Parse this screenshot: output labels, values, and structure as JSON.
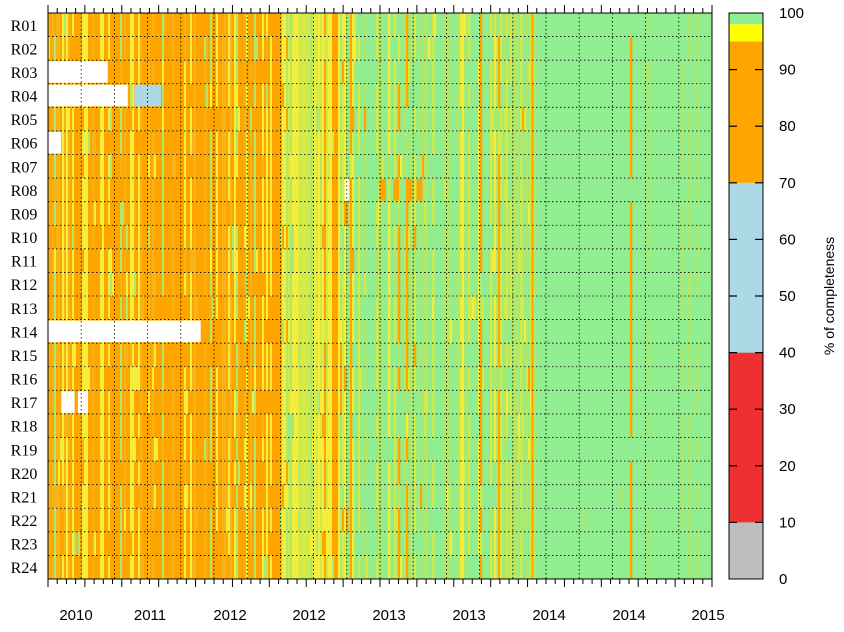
{
  "chart_data": {
    "type": "heatmap",
    "title": "",
    "xlabel": "",
    "ylabel": "",
    "colorbar_label": "% of completeness",
    "rows": [
      "R01",
      "R02",
      "R03",
      "R04",
      "R05",
      "R06",
      "R07",
      "R08",
      "R09",
      "R10",
      "R11",
      "R12",
      "R13",
      "R14",
      "R15",
      "R16",
      "R17",
      "R18",
      "R19",
      "R20",
      "R21",
      "R22",
      "R23",
      "R24"
    ],
    "x_tick_labels": [
      "2010",
      "2011",
      "2012",
      "2012",
      "2013",
      "2013",
      "2014",
      "2014",
      "2015"
    ],
    "colorbar": {
      "range": [
        0,
        100
      ],
      "ticks": [
        "0",
        "10",
        "20",
        "30",
        "40",
        "50",
        "60",
        "70",
        "80",
        "90",
        "100"
      ],
      "bins": [
        {
          "from": 0,
          "to": 10,
          "color": "#bebebe"
        },
        {
          "from": 10,
          "to": 40,
          "color": "#ee3030"
        },
        {
          "from": 40,
          "to": 70,
          "color": "#add8e6"
        },
        {
          "from": 70,
          "to": 95,
          "color": "#ffa500"
        },
        {
          "from": 95,
          "to": 98,
          "color": "#ffff00"
        },
        {
          "from": 98,
          "to": 100,
          "color": "#90ee90"
        }
      ]
    },
    "periods": [
      {
        "x_start": 0.0,
        "x_end": 0.36,
        "dominant": "orange",
        "approx_completeness": 85
      },
      {
        "x_start": 0.36,
        "x_end": 0.46,
        "dominant": "yellow-green mix",
        "approx_completeness": 97
      },
      {
        "x_start": 0.46,
        "x_end": 0.73,
        "dominant": "green with yellow streaks",
        "approx_completeness": 98
      },
      {
        "x_start": 0.73,
        "x_end": 1.0,
        "dominant": "green",
        "approx_completeness": 100
      }
    ],
    "missing_blocks": [
      {
        "row": "R03",
        "x_start": 0.0,
        "x_end": 0.09
      },
      {
        "row": "R04",
        "x_start": 0.0,
        "x_end": 0.12
      },
      {
        "row": "R06",
        "x_start": 0.0,
        "x_end": 0.02
      },
      {
        "row": "R14",
        "x_start": 0.0,
        "x_end": 0.23
      },
      {
        "row": "R17",
        "x_start": 0.02,
        "x_end": 0.04
      },
      {
        "row": "R17",
        "x_start": 0.045,
        "x_end": 0.06
      }
    ],
    "grid": true
  }
}
